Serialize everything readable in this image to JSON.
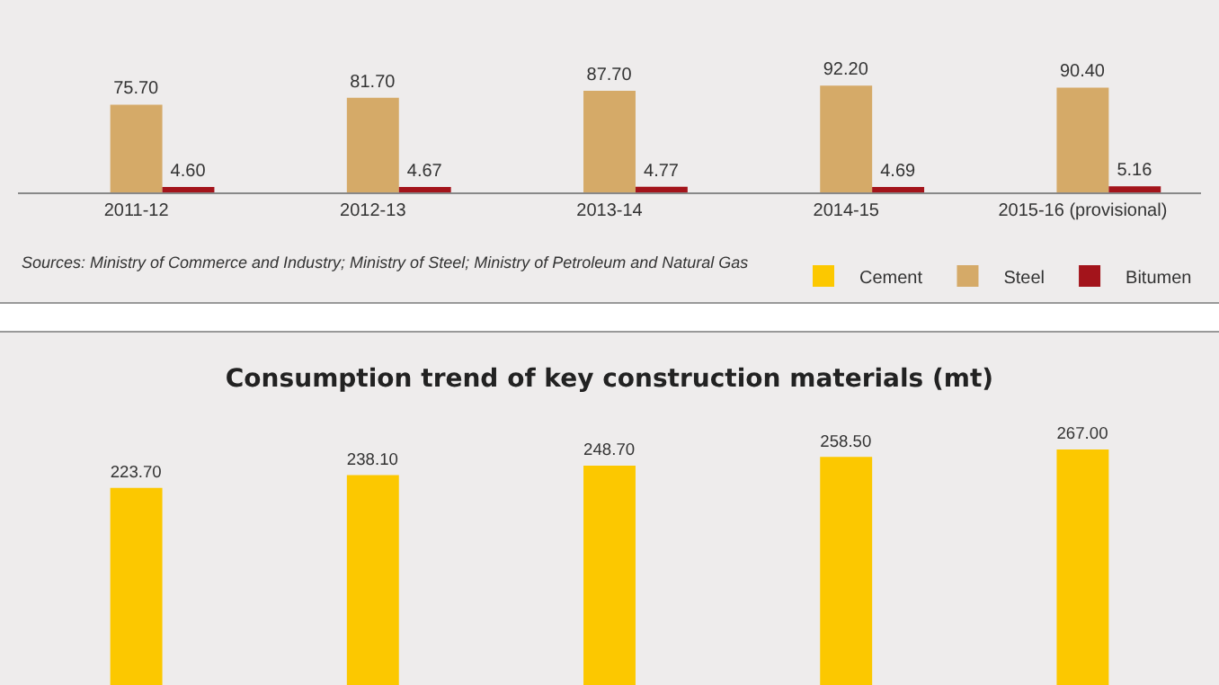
{
  "chart_data": [
    {
      "type": "bar",
      "categories": [
        "2011-12",
        "2012-13",
        "2013-14",
        "2014-15",
        "2015-16 (provisional)"
      ],
      "series": [
        {
          "name": "Cement",
          "color": "#fcc800",
          "values": [
            null,
            null,
            null,
            null,
            null
          ]
        },
        {
          "name": "Steel",
          "color": "#d5aa68",
          "values": [
            75.7,
            81.7,
            87.7,
            92.2,
            90.4
          ],
          "value_labels": [
            "75.70",
            "81.70",
            "87.70",
            "92.20",
            "90.40"
          ]
        },
        {
          "name": "Bitumen",
          "color": "#a3141b",
          "values": [
            4.6,
            4.67,
            4.77,
            4.69,
            5.16
          ],
          "value_labels": [
            "4.60",
            "4.67",
            "4.77",
            "4.69",
            "5.16"
          ]
        }
      ],
      "ylim": [
        0,
        166
      ],
      "tick_labels": "x",
      "legend": "bottom right",
      "grid": false,
      "annotations": [
        "Sources: Ministry of Commerce and Industry; Ministry of Steel; Ministry of Petroleum and Natural Gas"
      ]
    },
    {
      "type": "bar",
      "title": "Consumption trend of key construction materials (mt)",
      "categories": [
        null,
        null,
        null,
        null,
        null
      ],
      "series": [
        {
          "color": "#fcc800",
          "values": [
            223.7,
            238.1,
            248.7,
            258.5,
            267.0
          ],
          "value_labels": [
            "223.70",
            "238.10",
            "248.70",
            "258.50",
            "267.00"
          ]
        }
      ],
      "tick_labels": false,
      "grid": false
    }
  ]
}
